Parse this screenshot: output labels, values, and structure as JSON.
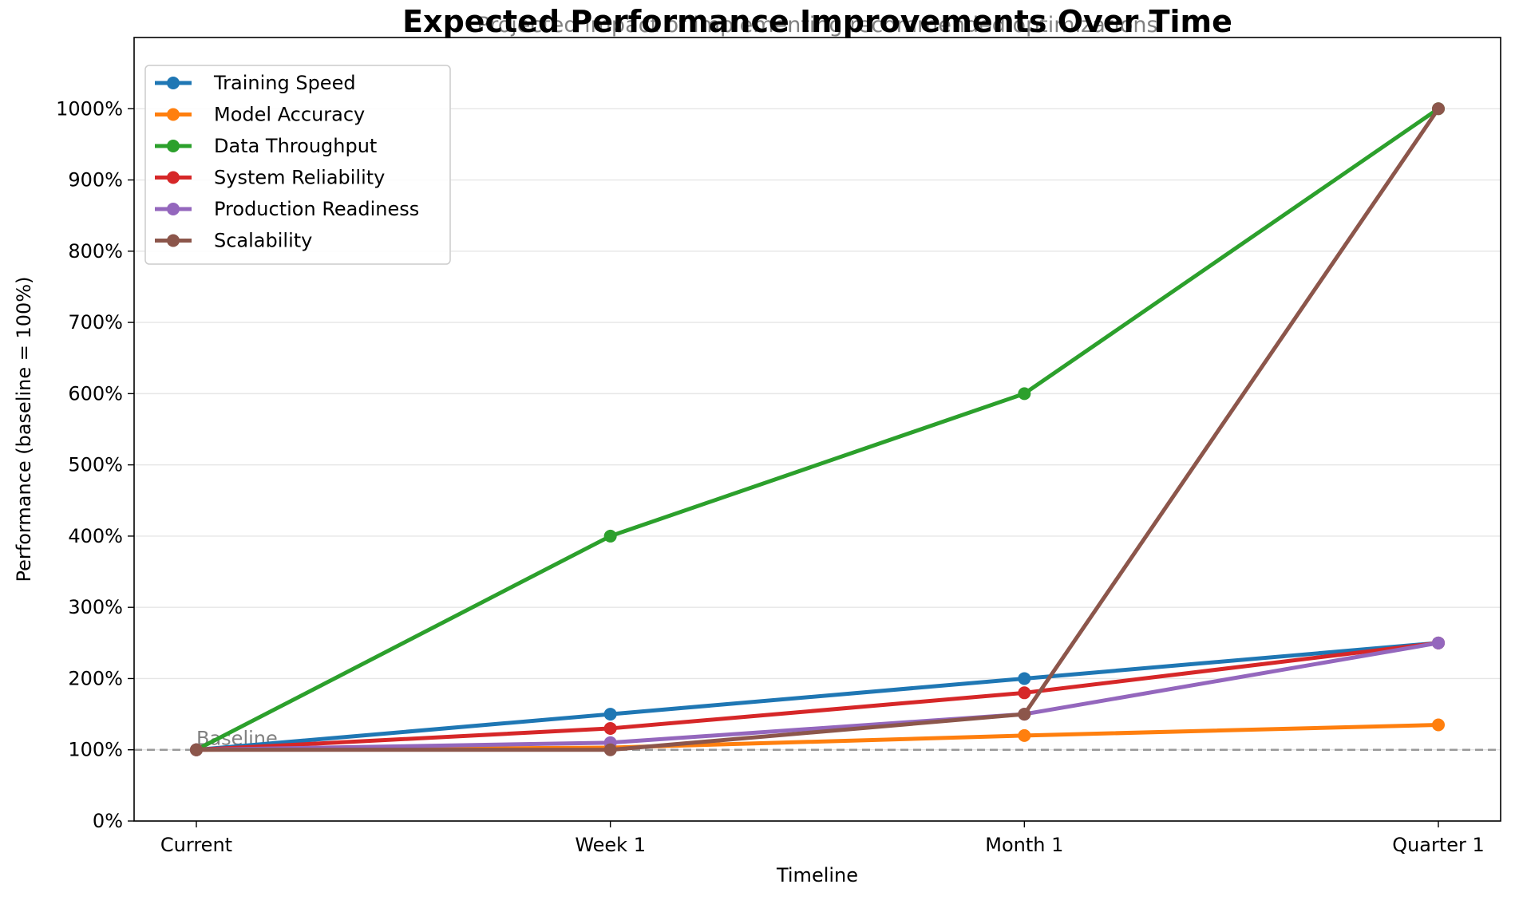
{
  "chart_data": {
    "type": "line",
    "title": "Expected Performance Improvements Over Time",
    "subtitle": "Projected impact of implementing recommended optimizations",
    "xlabel": "Timeline",
    "ylabel": "Performance (baseline = 100%)",
    "categories": [
      "Current",
      "Week 1",
      "Month 1",
      "Quarter 1"
    ],
    "ylim": [
      0,
      1100
    ],
    "yticks": [
      0,
      100,
      200,
      300,
      400,
      500,
      600,
      700,
      800,
      900,
      1000
    ],
    "ytick_labels": [
      "0%",
      "100%",
      "200%",
      "300%",
      "400%",
      "500%",
      "600%",
      "700%",
      "800%",
      "900%",
      "1000%"
    ],
    "grid": "horizontal",
    "legend_position": "top-left",
    "baseline": {
      "value": 100,
      "label": "Baseline",
      "color": "#999999"
    },
    "series": [
      {
        "name": "Training Speed",
        "color": "#1f77b4",
        "values": [
          100,
          150,
          200,
          250
        ]
      },
      {
        "name": "Model Accuracy",
        "color": "#ff7f0e",
        "values": [
          100,
          103,
          120,
          135
        ]
      },
      {
        "name": "Data Throughput",
        "color": "#2ca02c",
        "values": [
          100,
          400,
          600,
          1000
        ]
      },
      {
        "name": "System Reliability",
        "color": "#d62728",
        "values": [
          100,
          130,
          180,
          250
        ]
      },
      {
        "name": "Production Readiness",
        "color": "#9467bd",
        "values": [
          100,
          110,
          150,
          250
        ]
      },
      {
        "name": "Scalability",
        "color": "#8c564b",
        "values": [
          100,
          100,
          150,
          1000
        ]
      }
    ]
  }
}
